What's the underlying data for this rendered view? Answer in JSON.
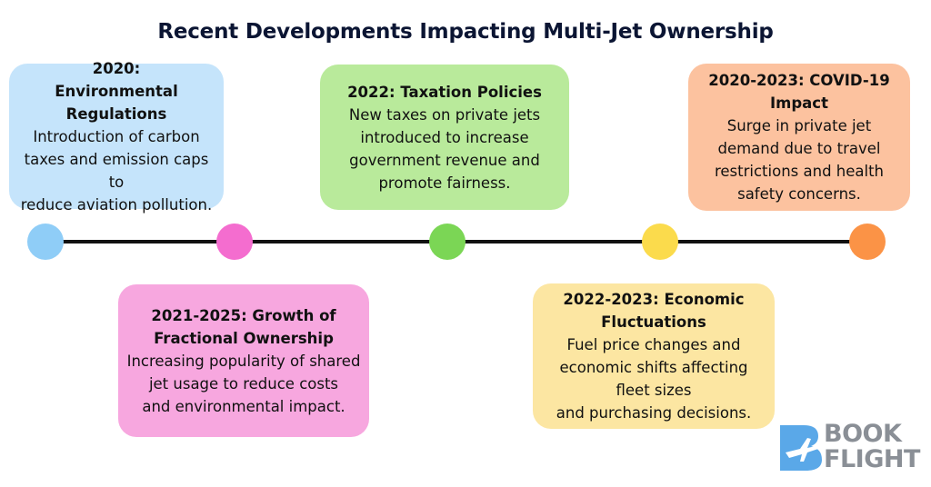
{
  "title": "Recent Developments Impacting Multi-Jet Ownership",
  "events": [
    {
      "title": "2020: Environmental Regulations",
      "description": "Introduction of carbon\ntaxes and emission caps to\nreduce aviation pollution.",
      "card_color": "#c5e4fb",
      "dot_color": "#8fcdf7"
    },
    {
      "title": "2021-2025: Growth of Fractional Ownership",
      "description": "Increasing popularity of shared\njet usage to reduce costs\nand environmental impact.",
      "card_color": "#f7a7df",
      "dot_color": "#f46dcf"
    },
    {
      "title": "2022: Taxation Policies",
      "description": "New taxes on private jets\nintroduced to increase\ngovernment revenue and\npromote fairness.",
      "card_color": "#b9ea9b",
      "dot_color": "#7bd655"
    },
    {
      "title": "2022-2023: Economic Fluctuations",
      "description": "Fuel price changes and\neconomic shifts affecting\nfleet sizes\nand purchasing decisions.",
      "card_color": "#fce6a2",
      "dot_color": "#fbdb4c"
    },
    {
      "title": "2020-2023: COVID-19 Impact",
      "description": "Surge in private jet\ndemand due to travel\nrestrictions and health\nsafety concerns.",
      "card_color": "#fcc29f",
      "dot_color": "#fb9346"
    }
  ],
  "logo": {
    "line1": "BOOK",
    "line2": "FLIGHT",
    "icon": "plane-b-icon",
    "text_color": "#8a8f96",
    "icon_color": "#5aa8e8"
  },
  "colors": {
    "title": "#0b1533",
    "line": "#111111"
  }
}
